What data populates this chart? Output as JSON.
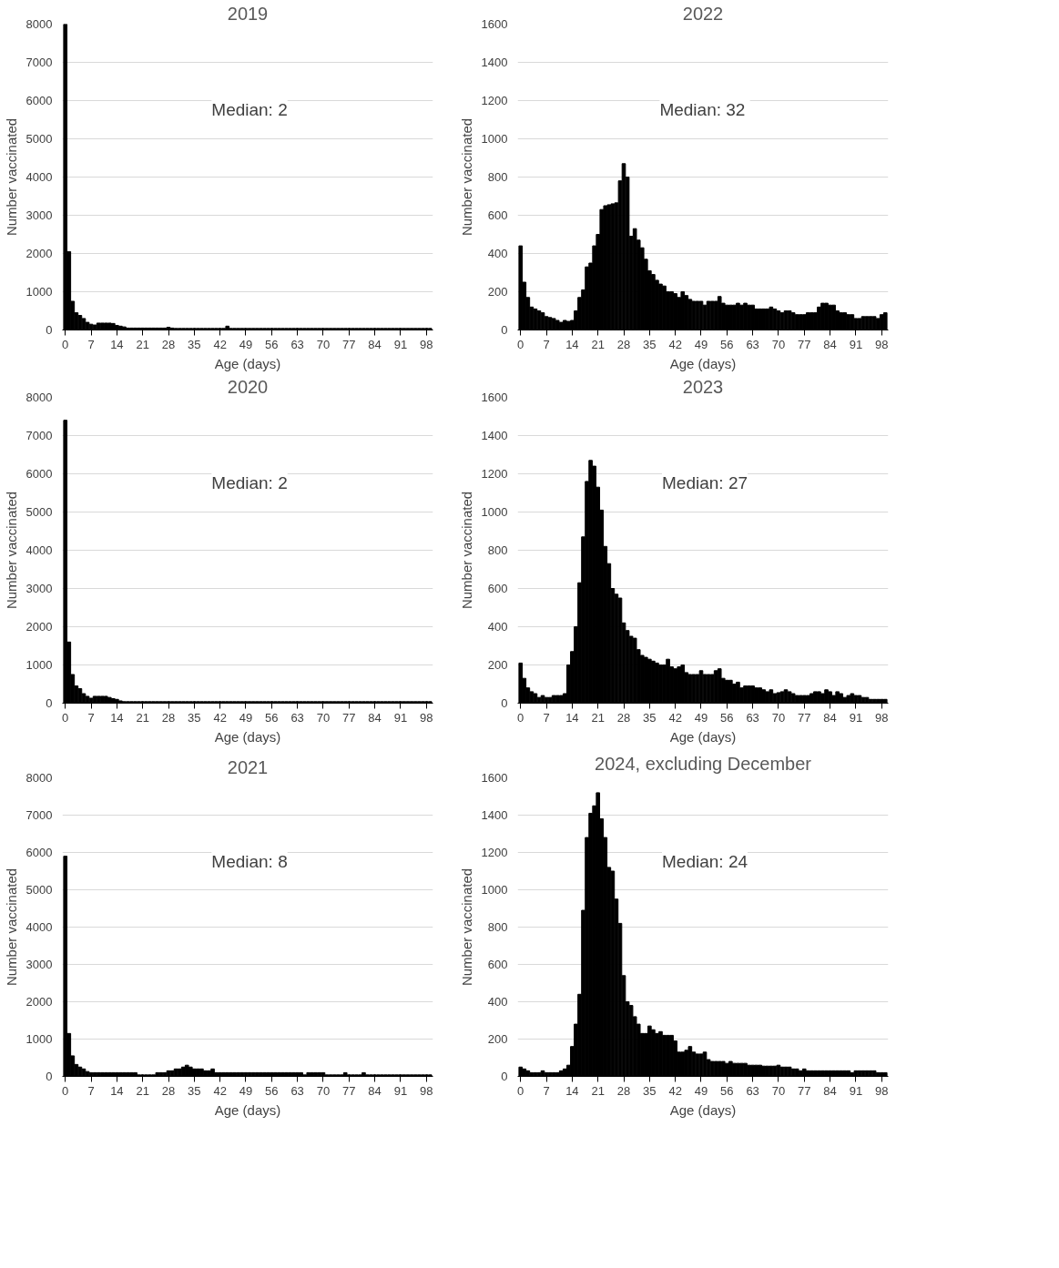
{
  "chart_data": [
    {
      "type": "bar",
      "title": "2019",
      "xlabel": "Age (days)",
      "ylabel": "Number vaccinated",
      "color": "#000000",
      "grid": "y",
      "ylim": [
        0,
        8000
      ],
      "yticks": [
        0,
        1000,
        2000,
        3000,
        4000,
        5000,
        6000,
        7000,
        8000
      ],
      "annotations": [
        "Median: 2"
      ],
      "categories": [
        "0",
        null,
        null,
        null,
        null,
        null,
        null,
        "7",
        null,
        null,
        null,
        null,
        null,
        null,
        "14",
        null,
        null,
        null,
        null,
        null,
        null,
        "21",
        null,
        null,
        null,
        null,
        null,
        null,
        "28",
        null,
        null,
        null,
        null,
        null,
        null,
        "35",
        null,
        null,
        null,
        null,
        null,
        null,
        "42",
        null,
        null,
        null,
        null,
        null,
        null,
        "49",
        null,
        null,
        null,
        null,
        null,
        null,
        "56",
        null,
        null,
        null,
        null,
        null,
        null,
        "63",
        null,
        null,
        null,
        null,
        null,
        null,
        "70",
        null,
        null,
        null,
        null,
        null,
        null,
        "77",
        null,
        null,
        null,
        null,
        null,
        null,
        "84",
        null,
        null,
        null,
        null,
        null,
        null,
        "91",
        null,
        null,
        null,
        null,
        null,
        null,
        "98",
        null
      ],
      "values": [
        8000,
        2050,
        750,
        450,
        380,
        300,
        200,
        150,
        130,
        180,
        180,
        180,
        180,
        170,
        120,
        100,
        80,
        50,
        50,
        50,
        50,
        50,
        50,
        50,
        50,
        50,
        50,
        50,
        70,
        50,
        40,
        40,
        40,
        40,
        40,
        40,
        40,
        40,
        40,
        40,
        40,
        40,
        40,
        40,
        100,
        40,
        40,
        40,
        40,
        40,
        40,
        40,
        40,
        40,
        40,
        40,
        40,
        40,
        40,
        40,
        40,
        40,
        40,
        40,
        40,
        40,
        40,
        40,
        40,
        40,
        40,
        40,
        40,
        40,
        40,
        40,
        40,
        40,
        40,
        40,
        40,
        40,
        40,
        40,
        40,
        40,
        40,
        40,
        40,
        40,
        40,
        40,
        40,
        40,
        40,
        40,
        40,
        40,
        40,
        40
      ]
    },
    {
      "type": "bar",
      "title": "2022",
      "xlabel": "Age (days)",
      "ylabel": "Number vaccinated",
      "color": "#000000",
      "grid": "y",
      "ylim": [
        0,
        1600
      ],
      "yticks": [
        0,
        200,
        400,
        600,
        800,
        1000,
        1200,
        1400,
        1600
      ],
      "annotations": [
        "Median:  32"
      ],
      "categories": [
        "0",
        null,
        null,
        null,
        null,
        null,
        null,
        "7",
        null,
        null,
        null,
        null,
        null,
        null,
        "14",
        null,
        null,
        null,
        null,
        null,
        null,
        "21",
        null,
        null,
        null,
        null,
        null,
        null,
        "28",
        null,
        null,
        null,
        null,
        null,
        null,
        "35",
        null,
        null,
        null,
        null,
        null,
        null,
        "42",
        null,
        null,
        null,
        null,
        null,
        null,
        "49",
        null,
        null,
        null,
        null,
        null,
        null,
        "56",
        null,
        null,
        null,
        null,
        null,
        null,
        "63",
        null,
        null,
        null,
        null,
        null,
        null,
        "70",
        null,
        null,
        null,
        null,
        null,
        null,
        "77",
        null,
        null,
        null,
        null,
        null,
        null,
        "84",
        null,
        null,
        null,
        null,
        null,
        null,
        "91",
        null,
        null,
        null,
        null,
        null,
        null,
        "98",
        null
      ],
      "values": [
        440,
        250,
        170,
        120,
        110,
        100,
        90,
        70,
        65,
        60,
        50,
        40,
        50,
        45,
        50,
        100,
        170,
        210,
        330,
        350,
        440,
        500,
        630,
        650,
        655,
        660,
        665,
        780,
        870,
        800,
        490,
        530,
        470,
        430,
        370,
        310,
        290,
        260,
        240,
        230,
        200,
        200,
        190,
        170,
        200,
        180,
        160,
        150,
        150,
        150,
        130,
        150,
        150,
        150,
        175,
        140,
        130,
        130,
        130,
        140,
        130,
        140,
        130,
        130,
        110,
        110,
        110,
        110,
        120,
        110,
        100,
        90,
        100,
        100,
        90,
        80,
        80,
        80,
        90,
        90,
        90,
        120,
        140,
        140,
        130,
        130,
        100,
        90,
        90,
        80,
        80,
        60,
        60,
        70,
        70,
        70,
        70,
        60,
        80,
        90
      ]
    },
    {
      "type": "bar",
      "title": "2020",
      "xlabel": "Age (days)",
      "ylabel": "Number vaccinated",
      "color": "#000000",
      "grid": "y",
      "ylim": [
        0,
        8000
      ],
      "yticks": [
        0,
        1000,
        2000,
        3000,
        4000,
        5000,
        6000,
        7000,
        8000
      ],
      "annotations": [
        "Median: 2"
      ],
      "categories": [
        "0",
        null,
        null,
        null,
        null,
        null,
        null,
        "7",
        null,
        null,
        null,
        null,
        null,
        null,
        "14",
        null,
        null,
        null,
        null,
        null,
        null,
        "21",
        null,
        null,
        null,
        null,
        null,
        null,
        "28",
        null,
        null,
        null,
        null,
        null,
        null,
        "35",
        null,
        null,
        null,
        null,
        null,
        null,
        "42",
        null,
        null,
        null,
        null,
        null,
        null,
        "49",
        null,
        null,
        null,
        null,
        null,
        null,
        "56",
        null,
        null,
        null,
        null,
        null,
        null,
        "63",
        null,
        null,
        null,
        null,
        null,
        null,
        "70",
        null,
        null,
        null,
        null,
        null,
        null,
        "77",
        null,
        null,
        null,
        null,
        null,
        null,
        "84",
        null,
        null,
        null,
        null,
        null,
        null,
        "91",
        null,
        null,
        null,
        null,
        null,
        null,
        "98",
        null
      ],
      "values": [
        7400,
        1600,
        750,
        450,
        380,
        250,
        180,
        130,
        180,
        180,
        180,
        180,
        150,
        120,
        100,
        60,
        40,
        40,
        40,
        40,
        40,
        40,
        40,
        40,
        40,
        40,
        40,
        40,
        40,
        40,
        40,
        40,
        40,
        40,
        40,
        40,
        40,
        40,
        40,
        40,
        40,
        40,
        40,
        40,
        40,
        40,
        40,
        40,
        40,
        40,
        40,
        40,
        40,
        40,
        40,
        40,
        40,
        40,
        40,
        40,
        40,
        40,
        40,
        40,
        40,
        40,
        40,
        40,
        40,
        40,
        40,
        40,
        40,
        40,
        40,
        40,
        40,
        40,
        40,
        40,
        40,
        40,
        40,
        40,
        40,
        40,
        40,
        40,
        40,
        40,
        40,
        40,
        40,
        40,
        40,
        40,
        40,
        40,
        40,
        40
      ]
    },
    {
      "type": "bar",
      "title": "2023",
      "xlabel": "Age (days)",
      "ylabel": "Number vaccinated",
      "color": "#000000",
      "grid": "y",
      "ylim": [
        0,
        1600
      ],
      "yticks": [
        0,
        200,
        400,
        600,
        800,
        1000,
        1200,
        1400,
        1600
      ],
      "annotations": [
        "Median: 27"
      ],
      "categories": [
        "0",
        null,
        null,
        null,
        null,
        null,
        null,
        "7",
        null,
        null,
        null,
        null,
        null,
        null,
        "14",
        null,
        null,
        null,
        null,
        null,
        null,
        "21",
        null,
        null,
        null,
        null,
        null,
        null,
        "28",
        null,
        null,
        null,
        null,
        null,
        null,
        "35",
        null,
        null,
        null,
        null,
        null,
        null,
        "42",
        null,
        null,
        null,
        null,
        null,
        null,
        "49",
        null,
        null,
        null,
        null,
        null,
        null,
        "56",
        null,
        null,
        null,
        null,
        null,
        null,
        "63",
        null,
        null,
        null,
        null,
        null,
        null,
        "70",
        null,
        null,
        null,
        null,
        null,
        null,
        "77",
        null,
        null,
        null,
        null,
        null,
        null,
        "84",
        null,
        null,
        null,
        null,
        null,
        null,
        "91",
        null,
        null,
        null,
        null,
        null,
        null,
        "98",
        null
      ],
      "values": [
        210,
        130,
        80,
        60,
        50,
        30,
        40,
        30,
        30,
        40,
        40,
        40,
        50,
        200,
        270,
        400,
        630,
        870,
        1160,
        1270,
        1240,
        1130,
        1010,
        820,
        730,
        600,
        570,
        550,
        420,
        380,
        350,
        340,
        280,
        250,
        240,
        230,
        220,
        210,
        200,
        200,
        230,
        190,
        180,
        190,
        200,
        160,
        150,
        150,
        150,
        170,
        150,
        150,
        150,
        170,
        180,
        130,
        120,
        120,
        100,
        110,
        80,
        90,
        90,
        90,
        80,
        80,
        70,
        60,
        70,
        50,
        55,
        60,
        70,
        60,
        50,
        40,
        40,
        40,
        40,
        50,
        60,
        60,
        50,
        70,
        60,
        40,
        60,
        50,
        30,
        40,
        50,
        40,
        40,
        30,
        30,
        20,
        20,
        20,
        20,
        20
      ]
    },
    {
      "type": "bar",
      "title": "2021",
      "xlabel": "Age (days)",
      "ylabel": "Number vaccinated",
      "color": "#000000",
      "grid": "y",
      "ylim": [
        0,
        8000
      ],
      "yticks": [
        0,
        1000,
        2000,
        3000,
        4000,
        5000,
        6000,
        7000,
        8000
      ],
      "annotations": [
        "Median: 8"
      ],
      "categories": [
        "0",
        null,
        null,
        null,
        null,
        null,
        null,
        "7",
        null,
        null,
        null,
        null,
        null,
        null,
        "14",
        null,
        null,
        null,
        null,
        null,
        null,
        "21",
        null,
        null,
        null,
        null,
        null,
        null,
        "28",
        null,
        null,
        null,
        null,
        null,
        null,
        "35",
        null,
        null,
        null,
        null,
        null,
        null,
        "42",
        null,
        null,
        null,
        null,
        null,
        null,
        "49",
        null,
        null,
        null,
        null,
        null,
        null,
        "56",
        null,
        null,
        null,
        null,
        null,
        null,
        "63",
        null,
        null,
        null,
        null,
        null,
        null,
        "70",
        null,
        null,
        null,
        null,
        null,
        null,
        "77",
        null,
        null,
        null,
        null,
        null,
        null,
        "84",
        null,
        null,
        null,
        null,
        null,
        null,
        "91",
        null,
        null,
        null,
        null,
        null,
        null,
        "98",
        null
      ],
      "values": [
        5900,
        1150,
        550,
        320,
        250,
        200,
        130,
        100,
        100,
        100,
        100,
        100,
        100,
        100,
        100,
        100,
        100,
        100,
        100,
        100,
        40,
        40,
        40,
        40,
        40,
        100,
        100,
        100,
        150,
        150,
        200,
        200,
        250,
        300,
        250,
        200,
        200,
        200,
        150,
        150,
        200,
        100,
        100,
        100,
        100,
        100,
        100,
        100,
        100,
        100,
        100,
        100,
        100,
        100,
        100,
        100,
        100,
        100,
        100,
        100,
        100,
        100,
        100,
        100,
        100,
        40,
        100,
        100,
        100,
        100,
        100,
        40,
        40,
        40,
        40,
        40,
        100,
        40,
        40,
        40,
        40,
        100,
        40,
        40,
        40,
        40,
        40,
        40,
        40,
        40,
        40,
        40,
        40,
        40,
        40,
        40,
        40,
        40,
        40,
        40
      ]
    },
    {
      "type": "bar",
      "title": "2024, excluding December",
      "xlabel": "Age (days)",
      "ylabel": "Number vaccinated",
      "color": "#000000",
      "grid": "y",
      "ylim": [
        0,
        1600
      ],
      "yticks": [
        0,
        200,
        400,
        600,
        800,
        1000,
        1200,
        1400,
        1600
      ],
      "annotations": [
        "Median: 24"
      ],
      "categories": [
        "0",
        null,
        null,
        null,
        null,
        null,
        null,
        "7",
        null,
        null,
        null,
        null,
        null,
        null,
        "14",
        null,
        null,
        null,
        null,
        null,
        null,
        "21",
        null,
        null,
        null,
        null,
        null,
        null,
        "28",
        null,
        null,
        null,
        null,
        null,
        null,
        "35",
        null,
        null,
        null,
        null,
        null,
        null,
        "42",
        null,
        null,
        null,
        null,
        null,
        null,
        "49",
        null,
        null,
        null,
        null,
        null,
        null,
        "56",
        null,
        null,
        null,
        null,
        null,
        null,
        "63",
        null,
        null,
        null,
        null,
        null,
        null,
        "70",
        null,
        null,
        null,
        null,
        null,
        null,
        "77",
        null,
        null,
        null,
        null,
        null,
        null,
        "84",
        null,
        null,
        null,
        null,
        null,
        null,
        "91",
        null,
        null,
        null,
        null,
        null,
        null,
        "98",
        null
      ],
      "values": [
        50,
        40,
        30,
        20,
        20,
        20,
        30,
        20,
        20,
        20,
        20,
        30,
        40,
        60,
        160,
        280,
        440,
        890,
        1280,
        1410,
        1450,
        1520,
        1380,
        1280,
        1120,
        1100,
        950,
        820,
        540,
        400,
        380,
        320,
        280,
        230,
        230,
        270,
        250,
        230,
        240,
        220,
        220,
        220,
        190,
        130,
        130,
        140,
        160,
        130,
        120,
        120,
        130,
        90,
        80,
        80,
        80,
        80,
        70,
        80,
        70,
        70,
        70,
        70,
        60,
        60,
        60,
        60,
        55,
        55,
        55,
        55,
        60,
        50,
        50,
        50,
        40,
        40,
        30,
        40,
        30,
        30,
        30,
        30,
        30,
        30,
        30,
        30,
        30,
        30,
        30,
        30,
        20,
        30,
        30,
        30,
        30,
        30,
        30,
        20,
        20,
        20
      ]
    }
  ]
}
